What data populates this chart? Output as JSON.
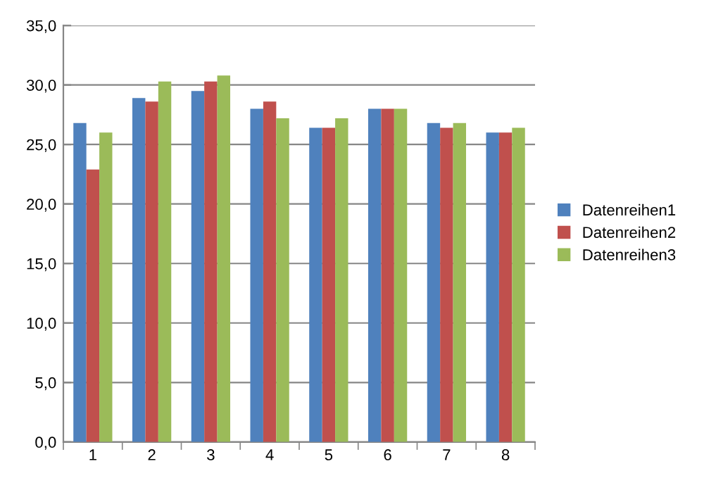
{
  "chart_data": {
    "type": "bar",
    "categories": [
      "1",
      "2",
      "3",
      "4",
      "5",
      "6",
      "7",
      "8"
    ],
    "series": [
      {
        "name": "Datenreihen1",
        "color": "#4f81bd",
        "values": [
          26.8,
          28.9,
          29.5,
          28.0,
          26.4,
          28.0,
          26.8,
          26.0
        ]
      },
      {
        "name": "Datenreihen2",
        "color": "#c0504d",
        "values": [
          22.9,
          28.6,
          30.3,
          28.6,
          26.4,
          28.0,
          26.4,
          26.0
        ]
      },
      {
        "name": "Datenreihen3",
        "color": "#9bbb59",
        "values": [
          26.0,
          30.3,
          30.8,
          27.2,
          27.2,
          28.0,
          26.8,
          26.4
        ]
      }
    ],
    "ylim": [
      0,
      35
    ],
    "yticks": [
      {
        "value": 0,
        "label": "0,0"
      },
      {
        "value": 5,
        "label": "5,0"
      },
      {
        "value": 10,
        "label": "10,0"
      },
      {
        "value": 15,
        "label": "15,0"
      },
      {
        "value": 20,
        "label": "20,0"
      },
      {
        "value": 25,
        "label": "25,0"
      },
      {
        "value": 30,
        "label": "30,0"
      },
      {
        "value": 35,
        "label": "35,0"
      }
    ],
    "grid": "y",
    "legend": "right"
  }
}
